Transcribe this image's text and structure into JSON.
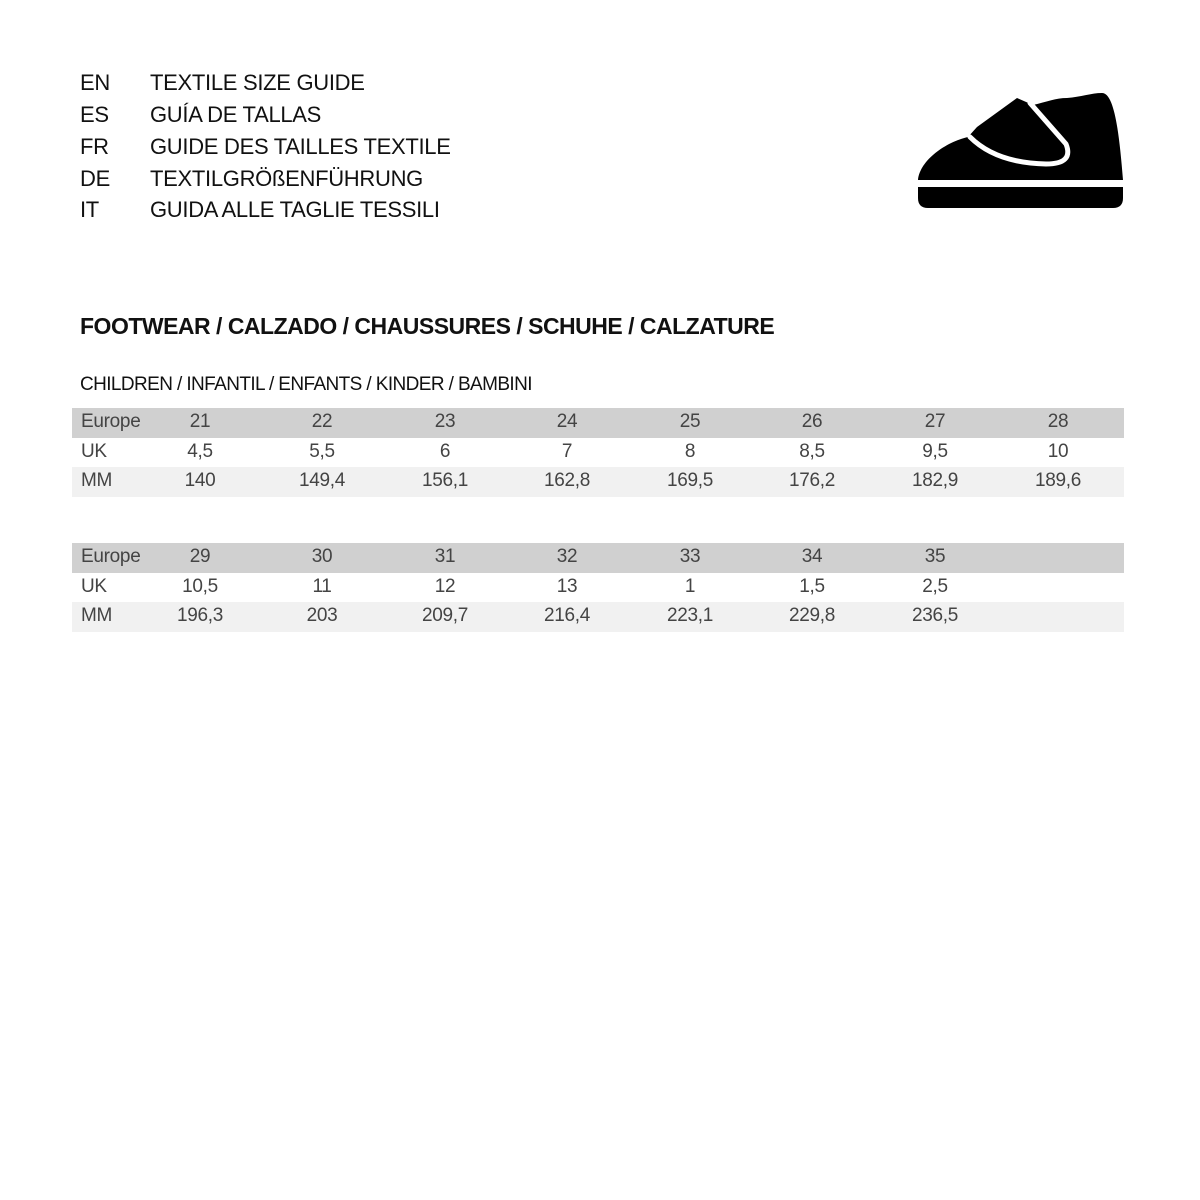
{
  "guide_titles": [
    {
      "code": "EN",
      "title": "TEXTILE SIZE GUIDE"
    },
    {
      "code": "ES",
      "title": "GUÍA DE TALLAS"
    },
    {
      "code": "FR",
      "title": "GUIDE DES TAILLES TEXTILE"
    },
    {
      "code": "DE",
      "title": "TEXTILGRÖßENFÜHRUNG"
    },
    {
      "code": "IT",
      "title": "GUIDA ALLE TAGLIE TESSILI"
    }
  ],
  "icon": "kids-velcro-shoe-icon",
  "section_title": "FOOTWEAR / CALZADO / CHAUSSURES / SCHUHE / CALZATURE",
  "subsection_title": "CHILDREN / INFANTIL / ENFANTS / KINDER / BAMBINI",
  "tables": [
    {
      "rows": [
        {
          "label": "Europe",
          "values": [
            "21",
            "22",
            "23",
            "24",
            "25",
            "26",
            "27",
            "28"
          ]
        },
        {
          "label": "UK",
          "values": [
            "4,5",
            "5,5",
            "6",
            "7",
            "8",
            "8,5",
            "9,5",
            "10"
          ]
        },
        {
          "label": "MM",
          "values": [
            "140",
            "149,4",
            "156,1",
            "162,8",
            "169,5",
            "176,2",
            "182,9",
            "189,6"
          ]
        }
      ]
    },
    {
      "rows": [
        {
          "label": "Europe",
          "values": [
            "29",
            "30",
            "31",
            "32",
            "33",
            "34",
            "35"
          ]
        },
        {
          "label": "UK",
          "values": [
            "10,5",
            "11",
            "12",
            "13",
            "1",
            "1,5",
            "2,5"
          ]
        },
        {
          "label": "MM",
          "values": [
            "196,3",
            "203",
            "209,7",
            "216,4",
            "223,1",
            "229,8",
            "236,5"
          ]
        }
      ]
    }
  ],
  "colors": {
    "header_row": "#d0d0d0",
    "mm_row": "#f1f1f1",
    "text": "#444444"
  }
}
